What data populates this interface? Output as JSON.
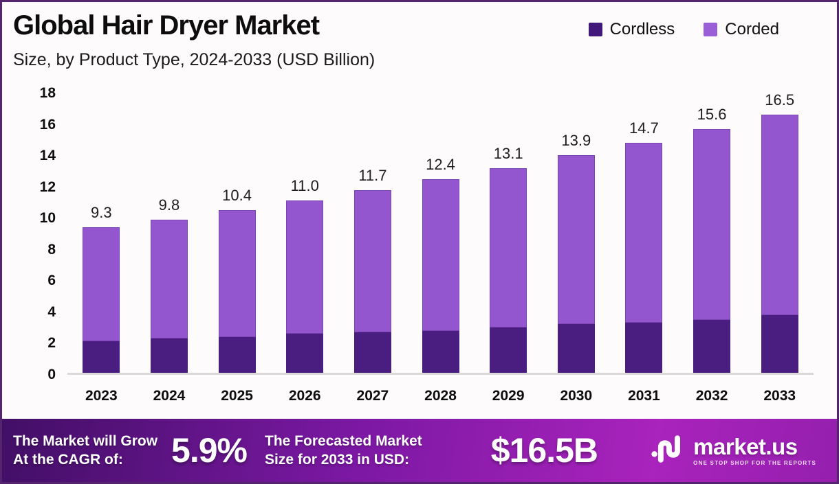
{
  "header": {
    "title": "Global Hair Dryer Market",
    "subtitle": "Size, by Product Type, 2024-2033 (USD Billion)"
  },
  "legend": [
    {
      "label": "Cordless",
      "color": "#41197b"
    },
    {
      "label": "Corded",
      "color": "#9a5ed7"
    }
  ],
  "chart_data": {
    "type": "bar",
    "stacked": true,
    "title": "Global Hair Dryer Market Size, by Product Type, 2024-2033 (USD Billion)",
    "categories": [
      "2023",
      "2024",
      "2025",
      "2026",
      "2027",
      "2028",
      "2029",
      "2030",
      "2031",
      "2032",
      "2033"
    ],
    "series": [
      {
        "name": "Cordless",
        "color": "#4a1e80",
        "values": [
          2.0,
          2.2,
          2.3,
          2.5,
          2.6,
          2.7,
          2.9,
          3.1,
          3.2,
          3.4,
          3.7
        ]
      },
      {
        "name": "Corded",
        "color": "#9356ce",
        "values": [
          7.3,
          7.6,
          8.1,
          8.5,
          9.1,
          9.7,
          10.2,
          10.8,
          11.5,
          12.2,
          12.8
        ]
      }
    ],
    "totals": [
      9.3,
      9.8,
      10.4,
      11.0,
      11.7,
      12.4,
      13.1,
      13.9,
      14.7,
      15.6,
      16.5
    ],
    "total_labels": [
      "9.3",
      "9.8",
      "10.4",
      "11.0",
      "11.7",
      "12.4",
      "13.1",
      "13.9",
      "14.7",
      "15.6",
      "16.5"
    ],
    "ylim": [
      0,
      18
    ],
    "yticks": [
      "18",
      "16",
      "14",
      "12",
      "10",
      "8",
      "6",
      "4",
      "2",
      "0"
    ],
    "grid": false,
    "legend_position": "top-right"
  },
  "banner": {
    "cagr_label_line1": "The Market will Grow",
    "cagr_label_line2": "At the CAGR of:",
    "cagr_value": "5.9%",
    "forecast_label_line1": "The Forecasted Market",
    "forecast_label_line2": "Size for 2033 in USD:",
    "forecast_value": "$16.5B",
    "logo_text": "market.us",
    "logo_tagline": "ONE STOP SHOP FOR THE REPORTS"
  },
  "colors": {
    "cordless": "#4a1e80",
    "corded": "#9356ce",
    "frame_border": "#55246e",
    "background": "#fdfbfb",
    "baseline": "#dcd8d8",
    "banner_gradient": [
      "#420f66",
      "#7b18a3",
      "#a923bc",
      "#951fae"
    ]
  }
}
